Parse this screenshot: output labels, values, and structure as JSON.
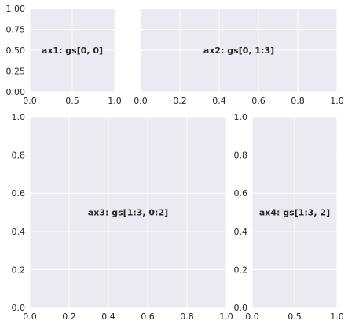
{
  "chart_data": [
    {
      "type": "line",
      "title": "",
      "annotation": "ax1: gs[0, 0]",
      "xlim": [
        0,
        1
      ],
      "ylim": [
        0,
        1
      ],
      "xticks": [
        "0.0",
        "0.5",
        "1.0"
      ],
      "yticks": [
        "0.00",
        "0.25",
        "0.50",
        "0.75",
        "1.00"
      ],
      "grid": true,
      "series": []
    },
    {
      "type": "line",
      "title": "",
      "annotation": "ax2: gs[0, 1:3]",
      "xlim": [
        0,
        1
      ],
      "ylim": [
        0,
        1
      ],
      "xticks": [
        "0.0",
        "0.2",
        "0.4",
        "0.6",
        "0.8",
        "1.0"
      ],
      "yticks": [],
      "grid": true,
      "series": []
    },
    {
      "type": "line",
      "title": "",
      "annotation": "ax3: gs[1:3, 0:2]",
      "xlim": [
        0,
        1
      ],
      "ylim": [
        0,
        1
      ],
      "xticks": [
        "0.0",
        "0.2",
        "0.4",
        "0.6",
        "0.8",
        "1.0"
      ],
      "yticks": [
        "0.0",
        "0.2",
        "0.4",
        "0.6",
        "0.8",
        "1.0"
      ],
      "grid": true,
      "series": []
    },
    {
      "type": "line",
      "title": "",
      "annotation": "ax4: gs[1:3, 2]",
      "xlim": [
        0,
        1
      ],
      "ylim": [
        0,
        1
      ],
      "xticks": [
        "0.0",
        "0.5",
        "1.0"
      ],
      "yticks": [
        "0.0",
        "0.2",
        "0.4",
        "0.6",
        "0.8",
        "1.0"
      ],
      "grid": true,
      "series": []
    }
  ],
  "colors": {
    "axes_bg": "#eaeaf2",
    "grid": "#ffffff",
    "text": "#262626"
  }
}
